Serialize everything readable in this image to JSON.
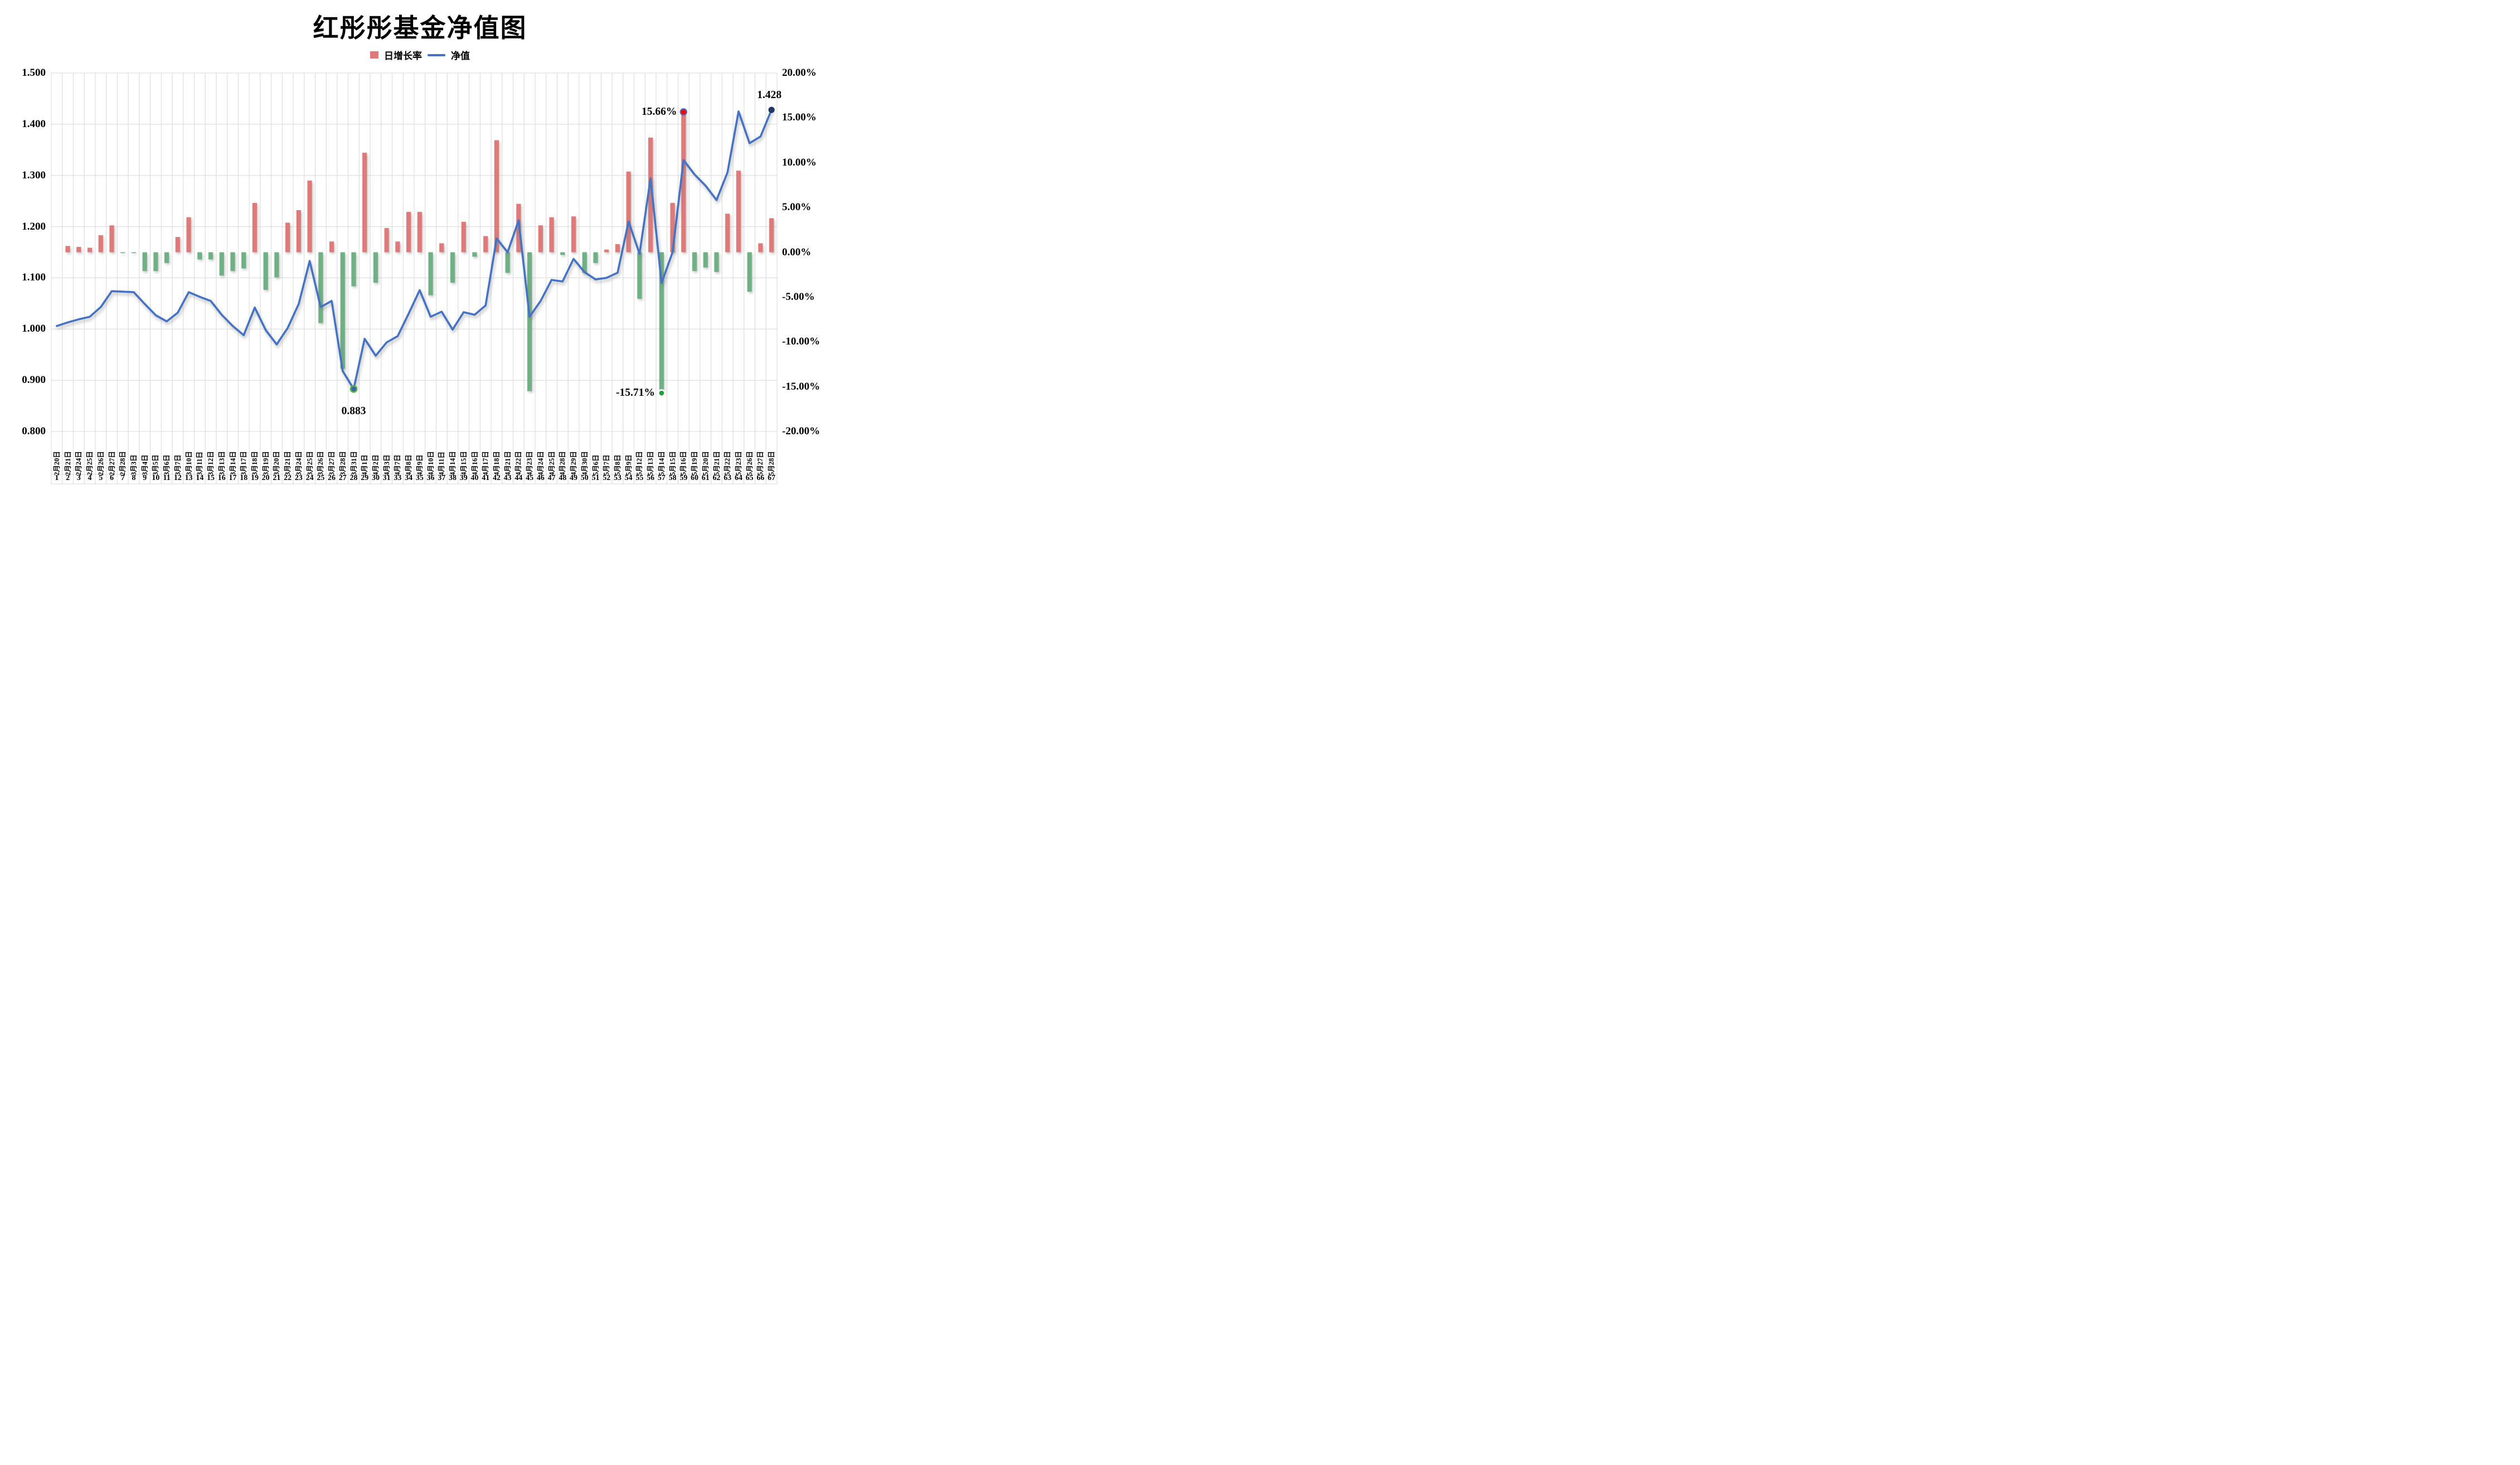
{
  "title": "红彤彤基金净值图",
  "legend": {
    "bar_label": "日增长率",
    "line_label": "净值"
  },
  "colors": {
    "bar_positive": "#de7a7a",
    "bar_negative": "#6fb185",
    "line": "#4472c4",
    "grid": "#d8d8d8",
    "marker_max_growth_fill": "#ff0000",
    "marker_max_growth_ring": "#4472c4",
    "marker_min_growth_fill": "#21a038",
    "marker_min_growth_ring": "#ffffff",
    "marker_min_net_fill": "#3e63a8",
    "marker_min_net_ring": "#56b14b",
    "marker_last_net_fill": "#1f3864"
  },
  "chart_data": {
    "type": "combo",
    "title": "红彤彤基金净值图",
    "legend_position": "top",
    "grid": true,
    "categories": [
      "2月20日",
      "2月21日",
      "2月24日",
      "2月25日",
      "2月26日",
      "2月27日",
      "2月28日",
      "3月3日",
      "3月4日",
      "3月5日",
      "3月6日",
      "3月7日",
      "3月10日",
      "3月11日",
      "3月12日",
      "3月13日",
      "3月14日",
      "3月17日",
      "3月18日",
      "3月19日",
      "3月20日",
      "3月21日",
      "3月24日",
      "3月25日",
      "3月26日",
      "3月27日",
      "3月28日",
      "3月31日",
      "4月1日",
      "4月2日",
      "4月3日",
      "4月7日",
      "4月8日",
      "4月9日",
      "4月10日",
      "4月11日",
      "4月14日",
      "4月15日",
      "4月16日",
      "4月17日",
      "4月18日",
      "4月21日",
      "4月22日",
      "4月23日",
      "4月24日",
      "4月25日",
      "4月28日",
      "4月29日",
      "4月30日",
      "5月6日",
      "5月7日",
      "5月8日",
      "5月9日",
      "5月12日",
      "5月13日",
      "5月14日",
      "5月15日",
      "5月16日",
      "5月19日",
      "5月20日",
      "5月21日",
      "5月22日",
      "5月23日",
      "5月26日",
      "5月27日",
      "5月28日"
    ],
    "category_indices": [
      1,
      2,
      3,
      4,
      5,
      6,
      7,
      8,
      9,
      10,
      11,
      12,
      13,
      14,
      15,
      16,
      17,
      18,
      19,
      20,
      21,
      22,
      23,
      24,
      25,
      26,
      27,
      28,
      29,
      30,
      31,
      33,
      34,
      35,
      36,
      37,
      38,
      39,
      40,
      41,
      42,
      43,
      44,
      45,
      46,
      47,
      48,
      49,
      50,
      51,
      52,
      53,
      54,
      55,
      56,
      57,
      58,
      59,
      60,
      61,
      62,
      63,
      64,
      65,
      66,
      67
    ],
    "series": [
      {
        "name": "日增长率",
        "type": "bar",
        "axis": "right",
        "unit": "%",
        "values": [
          null,
          0.7,
          0.6,
          0.5,
          1.9,
          3.0,
          -0.1,
          -0.1,
          -2.1,
          -2.1,
          -1.2,
          1.7,
          3.9,
          -0.8,
          -0.8,
          -2.6,
          -2.1,
          -1.8,
          5.5,
          -4.2,
          -2.8,
          3.3,
          4.7,
          8.0,
          -7.9,
          1.2,
          -13.0,
          -3.8,
          11.1,
          -3.4,
          2.7,
          1.2,
          4.5,
          4.5,
          -4.8,
          1.0,
          -3.4,
          3.4,
          -0.5,
          1.8,
          12.5,
          -2.3,
          5.4,
          -15.5,
          3.0,
          3.9,
          -0.3,
          4.0,
          -2.3,
          -1.2,
          0.3,
          0.9,
          9.0,
          -5.2,
          12.8,
          -15.71,
          5.5,
          15.66,
          -2.1,
          -1.7,
          -2.2,
          4.3,
          9.1,
          -4.4,
          1.0,
          3.8
        ]
      },
      {
        "name": "净值",
        "type": "line",
        "axis": "left",
        "values": [
          1.006,
          1.013,
          1.019,
          1.024,
          1.043,
          1.074,
          1.073,
          1.072,
          1.049,
          1.027,
          1.015,
          1.032,
          1.072,
          1.063,
          1.055,
          1.028,
          1.006,
          0.988,
          1.042,
          0.998,
          0.97,
          1.002,
          1.049,
          1.133,
          1.043,
          1.055,
          0.918,
          0.883,
          0.981,
          0.948,
          0.974,
          0.986,
          1.03,
          1.076,
          1.024,
          1.034,
          0.999,
          1.033,
          1.028,
          1.046,
          1.177,
          1.15,
          1.212,
          1.024,
          1.055,
          1.096,
          1.093,
          1.137,
          1.111,
          1.097,
          1.1,
          1.11,
          1.21,
          1.147,
          1.294,
          1.09,
          1.15,
          1.33,
          1.302,
          1.28,
          1.252,
          1.306,
          1.425,
          1.363,
          1.376,
          1.428
        ]
      }
    ],
    "left_axis": {
      "min": 0.8,
      "max": 1.5,
      "ticks": [
        "1.500",
        "1.400",
        "1.300",
        "1.200",
        "1.100",
        "1.000",
        "0.900",
        "0.800"
      ]
    },
    "right_axis": {
      "min": -20,
      "max": 20,
      "ticks": [
        "20.00%",
        "15.00%",
        "10.00%",
        "5.00%",
        "0.00%",
        "-5.00%",
        "-10.00%",
        "-15.00%",
        "-20.00%"
      ]
    },
    "annotations": [
      {
        "text": "15.66%",
        "kind": "max-growth",
        "category": "5月16日"
      },
      {
        "text": "-15.71%",
        "kind": "min-growth",
        "category": "5月14日"
      },
      {
        "text": "0.883",
        "kind": "min-net",
        "category": "3月31日"
      },
      {
        "text": "1.428",
        "kind": "last-net",
        "category": "5月28日"
      }
    ]
  }
}
